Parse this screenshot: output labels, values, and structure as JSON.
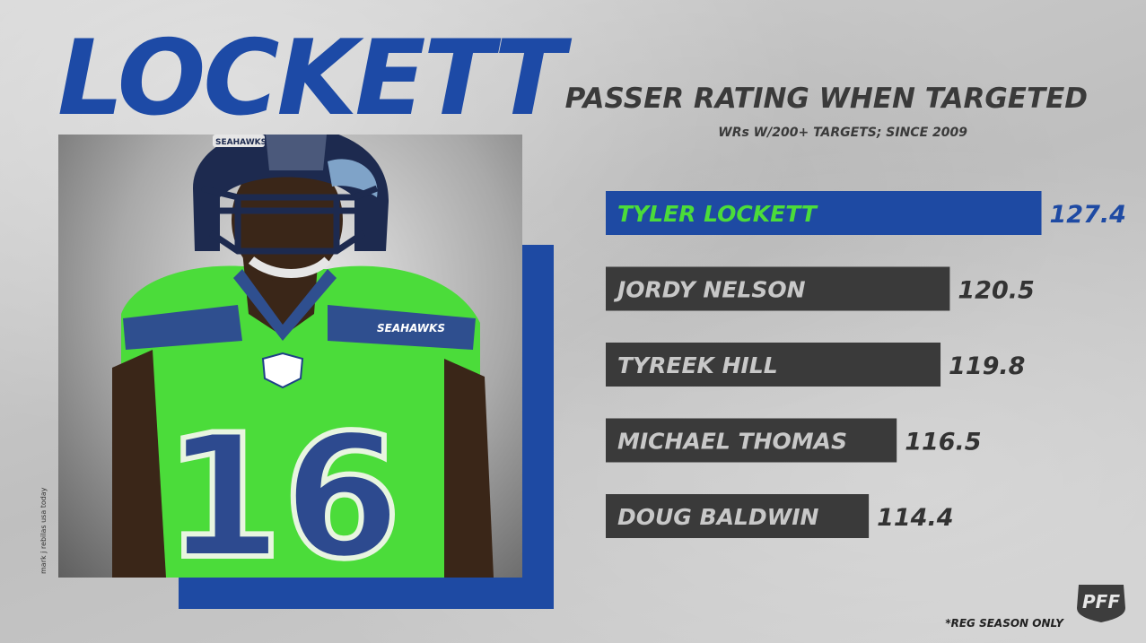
{
  "hero": {
    "title": "LOCKETT",
    "photo_credit": "mark j rebilas usa today"
  },
  "jersey": {
    "number": "16",
    "helmet_text": "SEAHAWKS",
    "chest_text": "SEAHAWKS"
  },
  "colors": {
    "blue": "#1e4aa3",
    "green": "#4bdc3a",
    "dark_bar": "#3a3a3a",
    "value_text": "#333333"
  },
  "chart_data": {
    "type": "bar",
    "orientation": "horizontal",
    "title": "PASSER RATING WHEN TARGETED",
    "subtitle": "WRs W/200+ TARGETS; SINCE 2009",
    "categories": [
      "TYLER LOCKETT",
      "JORDY NELSON",
      "TYREEK HILL",
      "MICHAEL THOMAS",
      "DOUG BALDWIN"
    ],
    "values": [
      127.4,
      120.5,
      119.8,
      116.5,
      114.4
    ],
    "value_labels": [
      "127.4",
      "120.5",
      "119.8",
      "116.5",
      "114.4"
    ],
    "highlighted_index": 0,
    "grid": false,
    "legend": "none"
  },
  "footnote": "*REG SEASON ONLY",
  "logo": {
    "text": "PFF",
    "icon": "pff-logo-icon"
  }
}
